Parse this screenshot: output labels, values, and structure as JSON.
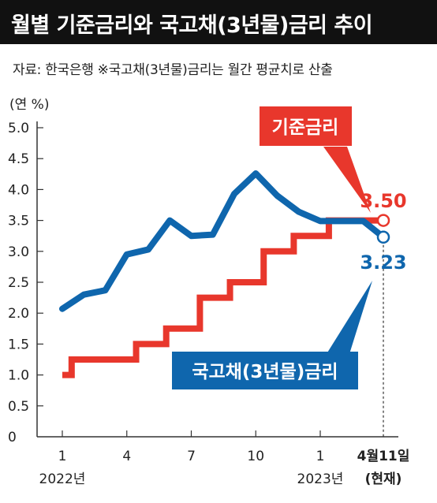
{
  "title": "월별 기준금리와 국고채(3년물)금리 추이",
  "source": "자료: 한국은행  ※국고채(3년물)금리는 월간 평균치로 산출",
  "colors": {
    "base_rate": "#e8372c",
    "bond": "#0f66ad",
    "title_bg": "#111111"
  },
  "chart_data": {
    "type": "line",
    "ylabel": "(연 %)",
    "ylim": [
      0,
      5.0
    ],
    "yticks": [
      "0",
      "0.5",
      "1.0",
      "1.5",
      "2.0",
      "2.5",
      "3.0",
      "3.5",
      "4.0",
      "4.5",
      "5.0"
    ],
    "x_tick_labels": [
      "1",
      "4",
      "7",
      "10",
      "1",
      "4월11일"
    ],
    "x_sublabels": [
      "2022년",
      "2023년",
      "(현재)"
    ],
    "grid": false,
    "series": [
      {
        "name": "기준금리",
        "type": "step",
        "x": [
          "2022-01-01",
          "2022-01-14",
          "2022-04-14",
          "2022-05-26",
          "2022-07-13",
          "2022-08-25",
          "2022-10-12",
          "2022-11-24",
          "2023-01-13",
          "2023-04-11"
        ],
        "values": [
          1.0,
          1.25,
          1.5,
          1.75,
          2.25,
          2.5,
          3.0,
          3.25,
          3.5,
          3.5
        ],
        "end_label": "3.50"
      },
      {
        "name": "국고채(3년물)금리",
        "type": "line",
        "x": [
          "2022-01",
          "2022-02",
          "2022-03",
          "2022-04",
          "2022-05",
          "2022-06",
          "2022-07",
          "2022-08",
          "2022-09",
          "2022-10",
          "2022-11",
          "2022-12",
          "2023-01",
          "2023-02",
          "2023-03",
          "2023-04"
        ],
        "values": [
          2.07,
          2.3,
          2.37,
          2.95,
          3.03,
          3.5,
          3.25,
          3.27,
          3.93,
          4.26,
          3.9,
          3.64,
          3.49,
          3.49,
          3.49,
          3.23
        ],
        "end_label": "3.23"
      }
    ]
  }
}
